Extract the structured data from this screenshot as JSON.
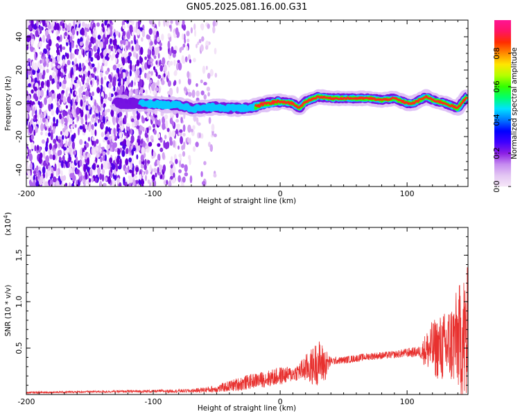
{
  "figure_title": "GN05.2025.081.16.00.G31",
  "colors": {
    "line": "#e8312f",
    "colorbar": [
      "#f6e7f8",
      "#e3c6f3",
      "#c68bf0",
      "#8c1fe4",
      "#3f00ff",
      "#0000ff",
      "#0078ff",
      "#00e1ff",
      "#00ff6e",
      "#33ff00",
      "#b4ff00",
      "#ffe600",
      "#ff8c00",
      "#ff2d00",
      "#ff1464",
      "#ff1493"
    ]
  },
  "chart_data": [
    {
      "type": "heatmap",
      "xlabel": "Height of straight line (km)",
      "ylabel": "Frequency (Hz)",
      "xlim": [
        -200,
        148
      ],
      "ylim": [
        -50,
        50
      ],
      "xticks": [
        -200,
        -100,
        0,
        100
      ],
      "yticks": [
        -40,
        -20,
        0,
        20,
        40
      ],
      "grid": false,
      "colorbar": {
        "label": "Normalized spectral amplitude",
        "range": [
          0,
          1
        ],
        "ticks": [
          "0.0",
          "0.2",
          "0.4",
          "0.6",
          "0.8"
        ]
      },
      "ridge": {
        "description_x": [
          -130,
          -110,
          -90,
          -80,
          -70,
          -60,
          -50,
          -40,
          -30,
          -20,
          -10,
          0,
          10,
          15,
          20,
          30,
          40,
          50,
          60,
          70,
          80,
          90,
          100,
          105,
          110,
          115,
          120,
          130,
          140,
          148
        ],
        "frequency": [
          0,
          0,
          -1,
          -1,
          -3,
          -3,
          -2,
          -3,
          -3,
          -2,
          0,
          1,
          0,
          -3,
          1,
          4,
          3,
          3,
          3,
          3,
          2,
          3,
          0,
          0,
          2,
          4,
          2,
          0,
          -3,
          5
        ]
      }
    },
    {
      "type": "line",
      "xlabel": "Height of straight line (km)",
      "ylabel": "SNR (10 * v/v)",
      "y_multiplier": "(x10^4)",
      "xlim": [
        -200,
        148
      ],
      "ylim": [
        0,
        1.8
      ],
      "xticks": [
        -200,
        -100,
        0,
        100
      ],
      "yticks": [
        0.5,
        1.0,
        1.5
      ],
      "ytick_labels": [
        "0.5",
        "1.0",
        "1.5"
      ],
      "grid": false,
      "envelope": {
        "x": [
          -200,
          -150,
          -100,
          -70,
          -60,
          -50,
          -40,
          -30,
          -20,
          -10,
          0,
          10,
          15,
          20,
          25,
          30,
          35,
          40,
          50,
          60,
          70,
          80,
          90,
          100,
          110,
          115,
          120,
          125,
          130,
          135,
          140,
          145,
          148
        ],
        "mean": [
          0.02,
          0.03,
          0.035,
          0.04,
          0.05,
          0.06,
          0.09,
          0.12,
          0.15,
          0.17,
          0.2,
          0.22,
          0.25,
          0.28,
          0.3,
          0.35,
          0.32,
          0.36,
          0.37,
          0.39,
          0.41,
          0.42,
          0.43,
          0.45,
          0.46,
          0.48,
          0.5,
          0.5,
          0.5,
          0.55,
          0.6,
          0.6,
          0.5
        ],
        "spread": [
          0.01,
          0.01,
          0.015,
          0.02,
          0.03,
          0.04,
          0.06,
          0.08,
          0.08,
          0.09,
          0.1,
          0.08,
          0.1,
          0.15,
          0.2,
          0.25,
          0.2,
          0.04,
          0.04,
          0.04,
          0.04,
          0.04,
          0.04,
          0.05,
          0.06,
          0.2,
          0.3,
          0.35,
          0.4,
          0.45,
          0.55,
          0.75,
          0.9
        ]
      }
    }
  ]
}
